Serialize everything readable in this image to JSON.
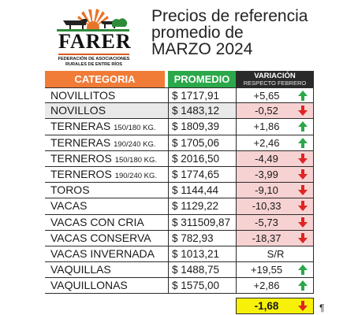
{
  "logo": {
    "name": "FARER",
    "subtitle_line1": "FEDERACIÓN DE ASOCIACIONES",
    "subtitle_line2": "RURALES DE ENTRE RÍOS",
    "icon": "cow-and-sun-logo"
  },
  "title": {
    "line1": "Precios de referencia",
    "line2": "promedio de",
    "line3": "MARZO 2024"
  },
  "table": {
    "headers": {
      "category": "CATEGORIA",
      "average": "PROMEDIO",
      "variation": "VARIACIÓN",
      "variation_sub": "RESPECTO FEBRERO"
    },
    "rows": [
      {
        "category": "NOVILLITOS",
        "category_sub": "",
        "price": "$ 1717,91",
        "variation": "+5,65",
        "trend": "up"
      },
      {
        "category": "NOVILLOS",
        "category_sub": "",
        "price": "$ 1483,12",
        "variation": "-0,52",
        "trend": "down"
      },
      {
        "category": "TERNERAS",
        "category_sub": "150/180 KG.",
        "price": "$ 1809,39",
        "variation": "+1,86",
        "trend": "up"
      },
      {
        "category": "TERNERAS",
        "category_sub": "190/240 KG.",
        "price": "$ 1705,06",
        "variation": "+2,46",
        "trend": "up"
      },
      {
        "category": "TERNEROS",
        "category_sub": "150/180 KG.",
        "price": "$ 2016,50",
        "variation": "-4,49",
        "trend": "down"
      },
      {
        "category": "TERNEROS",
        "category_sub": "190/240 KG.",
        "price": "$ 1774,65",
        "variation": "-3,99",
        "trend": "down"
      },
      {
        "category": "TOROS",
        "category_sub": "",
        "price": "$ 1144,44",
        "variation": "-9,10",
        "trend": "down"
      },
      {
        "category": "VACAS",
        "category_sub": "",
        "price": "$ 1129,22",
        "variation": "-10,33",
        "trend": "down"
      },
      {
        "category": "VACAS CON CRIA",
        "category_sub": "",
        "price": "$ 311509,87",
        "variation": "-5,73",
        "trend": "down"
      },
      {
        "category": "VACAS CONSERVA",
        "category_sub": "",
        "price": "$ 782,93",
        "variation": "-18,37",
        "trend": "down"
      },
      {
        "category": "VACAS INVERNADA",
        "category_sub": "",
        "price": "$ 1013,21",
        "variation": "S/R",
        "trend": "none"
      },
      {
        "category": "VAQUILLAS",
        "category_sub": "",
        "price": "$ 1488,75",
        "variation": "+19,55",
        "trend": "up"
      },
      {
        "category": "VAQUILLONAS",
        "category_sub": "",
        "price": "$ 1575,00",
        "variation": "+2,86",
        "trend": "up"
      }
    ],
    "total": {
      "variation": "-1,68",
      "trend": "down"
    }
  },
  "trailing_mark": "¶",
  "colors": {
    "category_header": "#f07c38",
    "average_header": "#2aa84a",
    "variation_header": "#2a2a2a",
    "up_arrow": "#2aa84a",
    "down_arrow": "#e02424",
    "negative_bg": "#f7d2d2",
    "total_bg": "#f7f10a"
  }
}
